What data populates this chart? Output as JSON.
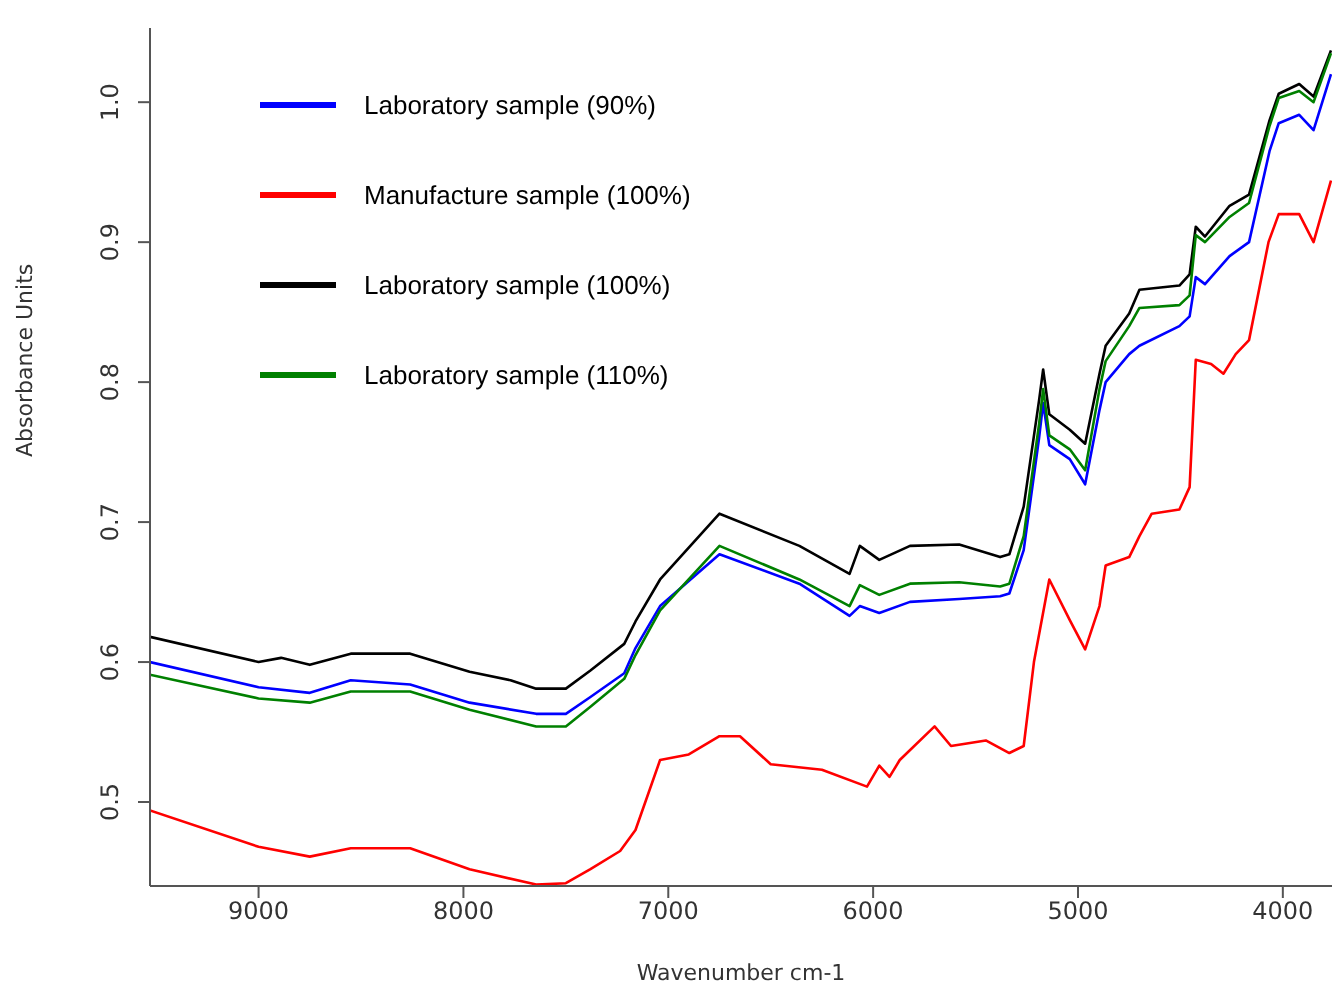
{
  "chart_data": {
    "type": "line",
    "xlabel": "Wavenumber cm-1",
    "ylabel": "Absorbance Units",
    "xlim": [
      9530,
      3760
    ],
    "xticks": [
      9000,
      8000,
      7000,
      6000,
      5000,
      4000
    ],
    "ylim": [
      0.44,
      1.053
    ],
    "yticks": [
      0.5,
      0.6,
      0.7,
      0.8,
      0.9,
      {
        "value": 1,
        "label": "1.0"
      }
    ],
    "grid": false,
    "legend": "top left",
    "marker": "none",
    "line_style": "solid",
    "series": [
      {
        "name": "Laboratory sample (90%)",
        "color": "#0000ff",
        "x": [
          9530,
          9000,
          8750,
          8550,
          8260,
          7970,
          7645,
          7500,
          7380,
          7215,
          7160,
          7040,
          6750,
          6360,
          6115,
          6065,
          5970,
          5820,
          5580,
          5380,
          5335,
          5265,
          5190,
          5170,
          5140,
          5040,
          4965,
          4895,
          4865,
          4750,
          4700,
          4505,
          4455,
          4425,
          4380,
          4260,
          4165,
          4065,
          4020,
          3920,
          3850,
          3765
        ],
        "values": [
          0.6,
          0.582,
          0.578,
          0.587,
          0.584,
          0.571,
          0.563,
          0.563,
          0.575,
          0.592,
          0.61,
          0.64,
          0.677,
          0.656,
          0.633,
          0.64,
          0.635,
          0.643,
          0.645,
          0.647,
          0.649,
          0.68,
          0.76,
          0.785,
          0.755,
          0.745,
          0.727,
          0.78,
          0.8,
          0.82,
          0.826,
          0.84,
          0.847,
          0.875,
          0.87,
          0.89,
          0.9,
          0.965,
          0.985,
          0.991,
          0.98,
          1.02
        ]
      },
      {
        "name": "Manufacture sample (100%)",
        "color": "#ff0000",
        "x": [
          9530,
          9000,
          8750,
          8550,
          8260,
          7970,
          7645,
          7500,
          7380,
          7235,
          7160,
          7040,
          6900,
          6750,
          6650,
          6500,
          6250,
          6030,
          5970,
          5920,
          5870,
          5700,
          5620,
          5450,
          5335,
          5265,
          5215,
          5140,
          5040,
          4965,
          4895,
          4865,
          4750,
          4700,
          4640,
          4505,
          4455,
          4425,
          4350,
          4290,
          4230,
          4165,
          4070,
          4020,
          3920,
          3850,
          3765
        ],
        "values": [
          0.494,
          0.468,
          0.461,
          0.467,
          0.467,
          0.452,
          0.441,
          0.442,
          0.452,
          0.465,
          0.48,
          0.53,
          0.534,
          0.547,
          0.547,
          0.527,
          0.523,
          0.511,
          0.526,
          0.518,
          0.53,
          0.554,
          0.54,
          0.544,
          0.535,
          0.54,
          0.6,
          0.659,
          0.63,
          0.609,
          0.64,
          0.669,
          0.675,
          0.69,
          0.706,
          0.709,
          0.725,
          0.816,
          0.813,
          0.806,
          0.82,
          0.83,
          0.9,
          0.92,
          0.92,
          0.9,
          0.944
        ]
      },
      {
        "name": "Laboratory sample (100%)",
        "color": "#000000",
        "x": [
          9530,
          9000,
          8890,
          8750,
          8550,
          8260,
          7970,
          7770,
          7645,
          7500,
          7380,
          7215,
          7160,
          7040,
          6750,
          6360,
          6115,
          6065,
          5970,
          5820,
          5580,
          5380,
          5335,
          5265,
          5190,
          5170,
          5140,
          5040,
          4965,
          4895,
          4865,
          4750,
          4700,
          4505,
          4455,
          4425,
          4380,
          4260,
          4165,
          4065,
          4020,
          3920,
          3850,
          3765
        ],
        "values": [
          0.618,
          0.6,
          0.603,
          0.598,
          0.606,
          0.606,
          0.593,
          0.587,
          0.581,
          0.581,
          0.594,
          0.613,
          0.629,
          0.659,
          0.706,
          0.683,
          0.663,
          0.683,
          0.673,
          0.683,
          0.684,
          0.675,
          0.677,
          0.711,
          0.787,
          0.809,
          0.777,
          0.766,
          0.756,
          0.806,
          0.826,
          0.849,
          0.866,
          0.869,
          0.877,
          0.911,
          0.904,
          0.926,
          0.934,
          0.987,
          1.006,
          1.013,
          1.004,
          1.037
        ]
      },
      {
        "name": "Laboratory sample (110%)",
        "color": "#008000",
        "x": [
          9530,
          9000,
          8750,
          8550,
          8260,
          7970,
          7645,
          7500,
          7380,
          7215,
          7160,
          7040,
          6750,
          6360,
          6115,
          6065,
          5970,
          5820,
          5580,
          5380,
          5335,
          5265,
          5190,
          5170,
          5140,
          5040,
          4965,
          4895,
          4865,
          4750,
          4700,
          4505,
          4455,
          4425,
          4380,
          4260,
          4165,
          4065,
          4020,
          3920,
          3850,
          3765
        ],
        "values": [
          0.591,
          0.574,
          0.571,
          0.579,
          0.579,
          0.566,
          0.554,
          0.554,
          0.568,
          0.588,
          0.605,
          0.637,
          0.683,
          0.659,
          0.64,
          0.655,
          0.648,
          0.656,
          0.657,
          0.654,
          0.656,
          0.69,
          0.77,
          0.795,
          0.762,
          0.752,
          0.737,
          0.795,
          0.815,
          0.84,
          0.853,
          0.855,
          0.862,
          0.905,
          0.9,
          0.918,
          0.928,
          0.983,
          1.003,
          1.008,
          1.0,
          1.035
        ]
      }
    ]
  }
}
